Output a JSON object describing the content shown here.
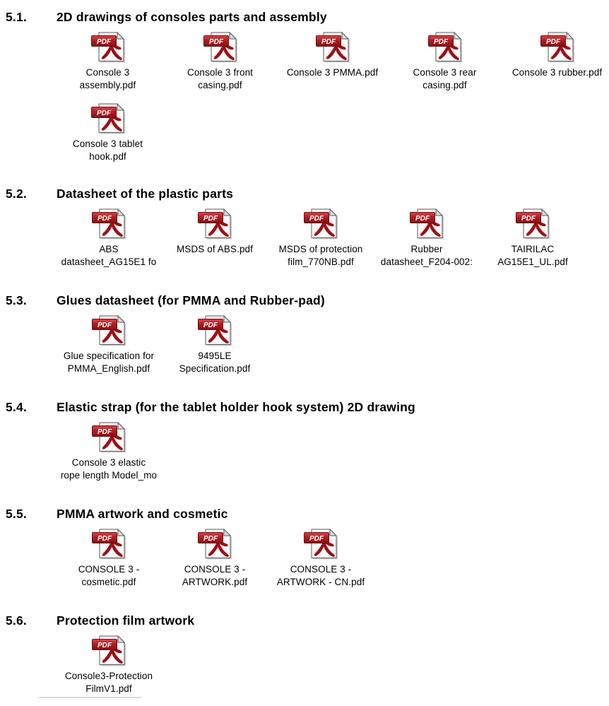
{
  "page": {
    "background": "#ffffff",
    "text_color": "#000000"
  },
  "icon": {
    "semantic": "pdf-file-icon",
    "banner_text": "PDF",
    "banner_color": "#a51317",
    "banner_highlight": "#d2494c",
    "banner_border": "#6b0d10",
    "glyph_color": "#9e1014",
    "page_color": "#fbfbfb",
    "page_border": "#5a5a5a",
    "fold_color": "#dedede",
    "shadow_color": "#cccccc",
    "banner_text_color": "#ffffff"
  },
  "sections": [
    {
      "number": "5.1.",
      "title": "2D drawings of consoles parts and assembly",
      "grid": "wide",
      "files": [
        {
          "lines": [
            "Console 3",
            "assembly.pdf"
          ]
        },
        {
          "lines": [
            "Console 3 front",
            "casing.pdf"
          ]
        },
        {
          "lines": [
            "Console 3 PMMA.pdf"
          ]
        },
        {
          "lines": [
            "Console 3 rear",
            "casing.pdf"
          ]
        },
        {
          "lines": [
            "Console 3 rubber.pdf"
          ]
        },
        {
          "lines": [
            "Console 3 tablet",
            "hook.pdf"
          ]
        }
      ]
    },
    {
      "number": "5.2.",
      "title": "Datasheet of the plastic parts",
      "grid": "normal",
      "files": [
        {
          "lines": [
            "ABS",
            "datasheet_AG15E1 fo"
          ]
        },
        {
          "lines": [
            "MSDS of ABS.pdf"
          ]
        },
        {
          "lines": [
            "MSDS of protection",
            "film_770NB.pdf"
          ]
        },
        {
          "lines": [
            "Rubber",
            "datasheet_F204-002:"
          ]
        },
        {
          "lines": [
            "TAIRILAC",
            "AG15E1_UL.pdf"
          ]
        }
      ]
    },
    {
      "number": "5.3.",
      "title": "Glues datasheet (for PMMA and Rubber-pad)",
      "grid": "normal",
      "files": [
        {
          "lines": [
            "Glue specification for",
            "PMMA_English.pdf"
          ]
        },
        {
          "lines": [
            "9495LE",
            "Specification.pdf"
          ]
        }
      ]
    },
    {
      "number": "5.4.",
      "title": "Elastic strap (for the tablet holder hook system) 2D drawing",
      "grid": "normal",
      "files": [
        {
          "lines": [
            "Console 3 elastic",
            "rope length Model_mo"
          ]
        }
      ]
    },
    {
      "number": "5.5.",
      "title": "PMMA artwork and cosmetic",
      "grid": "normal",
      "files": [
        {
          "lines": [
            "CONSOLE 3 -",
            "cosmetic.pdf"
          ]
        },
        {
          "lines": [
            "CONSOLE 3 -",
            "ARTWORK.pdf"
          ]
        },
        {
          "lines": [
            "CONSOLE 3 -",
            "ARTWORK - CN.pdf"
          ]
        }
      ]
    },
    {
      "number": "5.6.",
      "title": "Protection film artwork",
      "grid": "normal",
      "files": [
        {
          "lines": [
            "Console3-Protection",
            "FilmV1.pdf"
          ]
        }
      ]
    }
  ]
}
